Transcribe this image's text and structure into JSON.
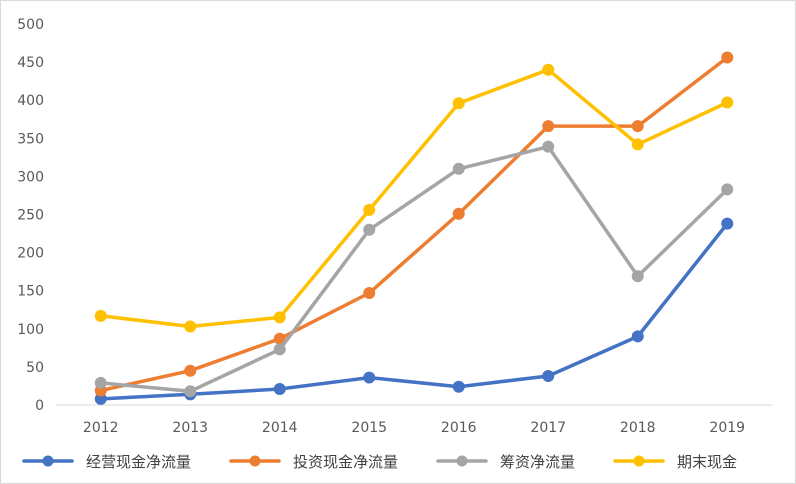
{
  "chart_data": {
    "type": "line",
    "categories": [
      "2012",
      "2013",
      "2014",
      "2015",
      "2016",
      "2017",
      "2018",
      "2019"
    ],
    "ylim": [
      0,
      500
    ],
    "yticks": [
      0,
      50,
      100,
      150,
      200,
      250,
      300,
      350,
      400,
      450,
      500
    ],
    "grid": false,
    "legend_position": "bottom",
    "series": [
      {
        "name": "经营现金净流量",
        "color": "#4472C4",
        "values": [
          8,
          14,
          21,
          36,
          24,
          38,
          90,
          238
        ]
      },
      {
        "name": "投资现金净流量",
        "color": "#ED7D31",
        "values": [
          19,
          45,
          87,
          147,
          251,
          366,
          366,
          456
        ]
      },
      {
        "name": "筹资净流量",
        "color": "#A5A5A5",
        "values": [
          29,
          18,
          73,
          230,
          310,
          339,
          169,
          283
        ]
      },
      {
        "name": "期末现金",
        "color": "#FFC000",
        "values": [
          117,
          103,
          115,
          256,
          396,
          440,
          342,
          397
        ]
      }
    ]
  }
}
